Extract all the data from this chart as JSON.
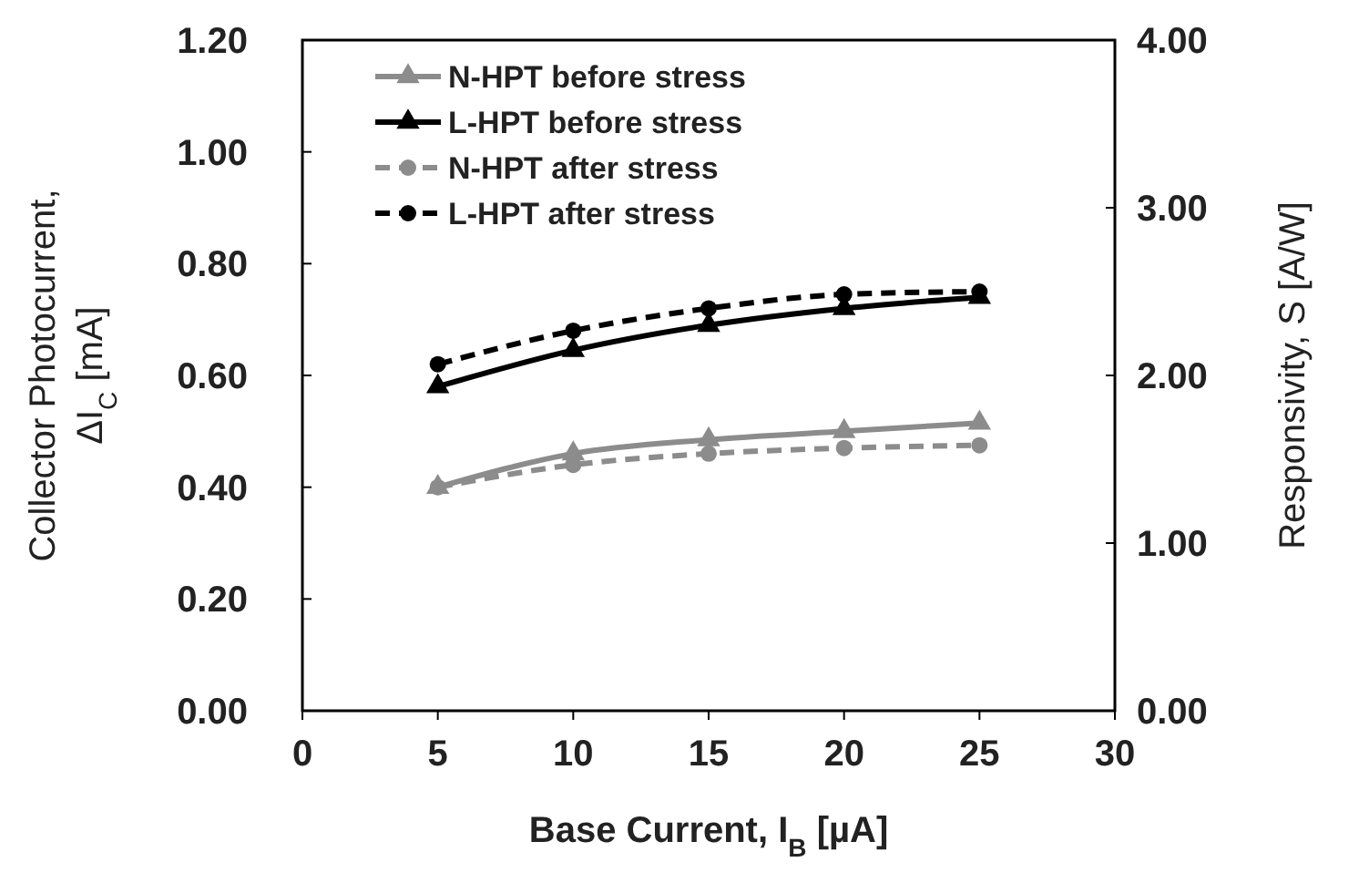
{
  "chart_data": {
    "type": "line",
    "xlabel": "Base Current, I$_{B}$ [µA]",
    "ylabel": "Collector Photocurrent, ΔI$_{C}$ [mA]",
    "y2label": "Responsivity, S [A/W]",
    "x": [
      5,
      10,
      15,
      20,
      25
    ],
    "series": [
      {
        "name": "N-HPT before stress",
        "color": "#8c8c8c",
        "values": [
          0.4,
          0.46,
          0.485,
          0.5,
          0.515
        ],
        "marker": "triangle",
        "line_style": "solid"
      },
      {
        "name": "L-HPT before stress",
        "color": "#000000",
        "values": [
          0.58,
          0.645,
          0.69,
          0.72,
          0.74
        ],
        "marker": "triangle",
        "line_style": "solid"
      },
      {
        "name": "N-HPT after stress",
        "color": "#8c8c8c",
        "values": [
          0.4,
          0.44,
          0.46,
          0.47,
          0.475
        ],
        "marker": "circle",
        "line_style": "dashed"
      },
      {
        "name": "L-HPT after stress",
        "color": "#000000",
        "values": [
          0.62,
          0.68,
          0.72,
          0.745,
          0.75
        ],
        "marker": "circle",
        "line_style": "dashed"
      }
    ],
    "xlim": [
      0,
      30
    ],
    "xticks": [
      0,
      5,
      10,
      15,
      20,
      25,
      30
    ],
    "ylim": [
      0,
      1.2
    ],
    "yticks": [
      {
        "value": 0,
        "label": "0.00"
      },
      {
        "value": 0.2,
        "label": "0.20"
      },
      {
        "value": 0.4,
        "label": "0.40"
      },
      {
        "value": 0.6,
        "label": "0.60"
      },
      {
        "value": 0.8,
        "label": "0.80"
      },
      {
        "value": 1,
        "label": "1.00"
      },
      {
        "value": 1.2,
        "label": "1.20"
      }
    ],
    "y2lim": [
      0,
      4
    ],
    "y2ticks": [
      {
        "value": 0,
        "label": "0.00"
      },
      {
        "value": 1,
        "label": "1.00"
      },
      {
        "value": 2,
        "label": "2.00"
      },
      {
        "value": 3,
        "label": "3.00"
      },
      {
        "value": 4,
        "label": "4.00"
      }
    ],
    "grid": false,
    "legend": "top left"
  }
}
